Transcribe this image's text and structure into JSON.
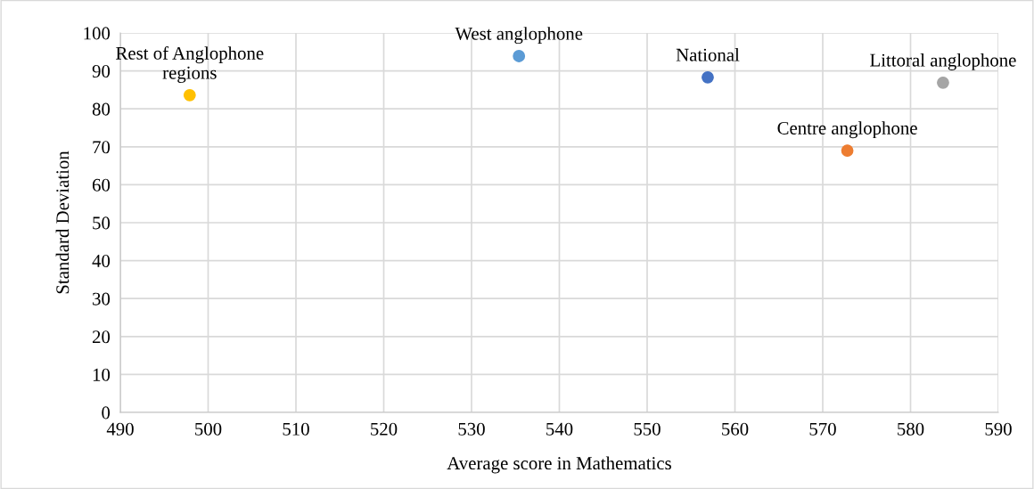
{
  "chart_data": {
    "type": "scatter",
    "xlabel": "Average score in Mathematics",
    "ylabel": "Standard Deviation",
    "series": [
      {
        "name": "Rest of Anglophone regions",
        "color": "#ffc000",
        "x": [
          497.9
        ],
        "values": [
          83.6
        ]
      },
      {
        "name": "West anglophone",
        "color": "#5b9bd5",
        "x": [
          535.4
        ],
        "values": [
          93.9
        ]
      },
      {
        "name": "National",
        "color": "#4472c4",
        "x": [
          556.9
        ],
        "values": [
          88.3
        ]
      },
      {
        "name": "Centre anglophone",
        "color": "#ed7d31",
        "x": [
          572.8
        ],
        "values": [
          69.0
        ]
      },
      {
        "name": "Littoral anglophone",
        "color": "#a5a5a5",
        "x": [
          583.7
        ],
        "values": [
          86.9
        ]
      }
    ],
    "xlim": [
      490,
      590
    ],
    "xticks": [
      490,
      500,
      510,
      520,
      530,
      540,
      550,
      560,
      570,
      580,
      590
    ],
    "ylim": [
      0,
      100
    ],
    "yticks": [
      0,
      10,
      20,
      30,
      40,
      50,
      60,
      70,
      80,
      90,
      100
    ],
    "grid": true,
    "marker": "circle",
    "legend": false
  }
}
